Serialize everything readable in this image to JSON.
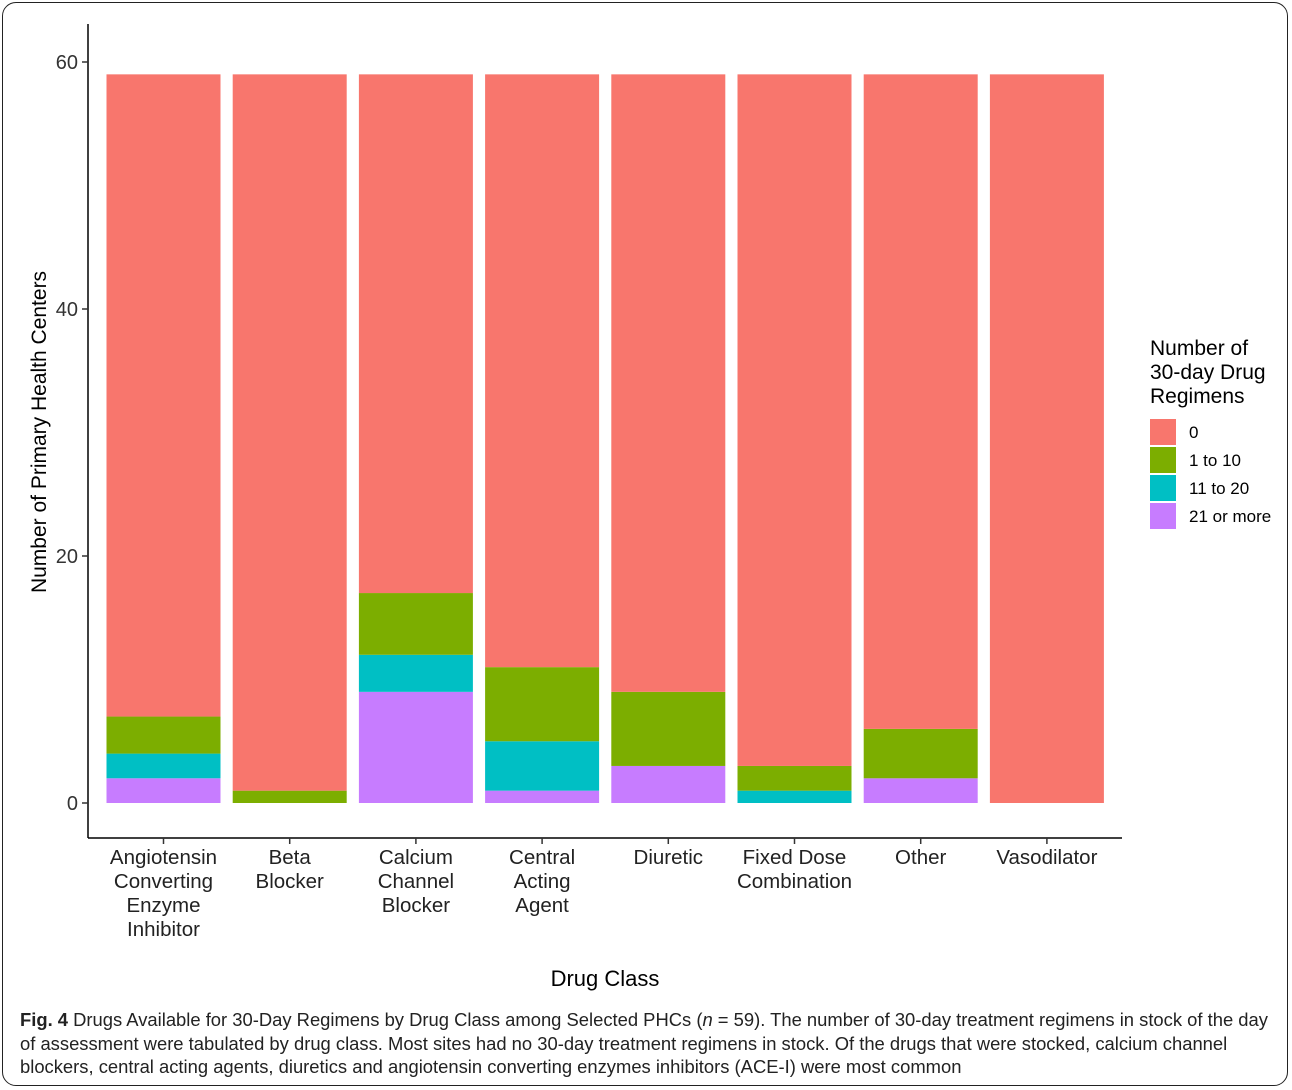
{
  "chart_data": {
    "type": "bar",
    "stacked": true,
    "xlabel": "Drug Class",
    "ylabel": "Number of Primary Health Centers",
    "ylim": [
      0,
      60
    ],
    "yticks": [
      "0",
      "20",
      "40",
      "60"
    ],
    "categories": [
      [
        "Angiotensin",
        "Converting",
        "Enzyme",
        "Inhibitor"
      ],
      [
        "Beta",
        "Blocker"
      ],
      [
        "Calcium",
        "Channel",
        "Blocker"
      ],
      [
        "Central",
        "Acting",
        "Agent"
      ],
      [
        "Diuretic"
      ],
      [
        "Fixed Dose",
        "Combination"
      ],
      [
        "Other"
      ],
      [
        "Vasodilator"
      ]
    ],
    "legend": {
      "title": [
        "Number of",
        "30-day Drug",
        "Regimens"
      ],
      "placement": "right"
    },
    "series": [
      {
        "name": "21 or more",
        "color": "#C77CFF",
        "values": [
          2,
          0,
          9,
          1,
          3,
          0,
          2,
          0
        ]
      },
      {
        "name": "11 to 20",
        "color": "#00BFC4",
        "values": [
          2,
          0,
          3,
          4,
          0,
          1,
          0,
          0
        ]
      },
      {
        "name": "1 to 10",
        "color": "#7CAE00",
        "values": [
          3,
          1,
          5,
          6,
          6,
          2,
          4,
          0
        ]
      },
      {
        "name": "0",
        "color": "#F8766D",
        "values": [
          52,
          58,
          42,
          48,
          50,
          56,
          53,
          59
        ]
      }
    ],
    "legend_order": [
      "0",
      "1 to 10",
      "11 to 20",
      "21 or more"
    ]
  },
  "caption": {
    "lead": "Fig. 4",
    "text_before_n": " Drugs Available for 30-Day Regimens by Drug Class among Selected PHCs (",
    "n_symbol": "n",
    "text_after_n": " = 59). The number of 30-day treatment regimens in stock of the day of assessment were tabulated by drug class. Most sites had no 30-day treatment regimens in stock. Of the drugs that were stocked, calcium channel blockers, central acting agents, diuretics and angiotensin converting enzymes inhibitors (ACE-I) were most common"
  }
}
